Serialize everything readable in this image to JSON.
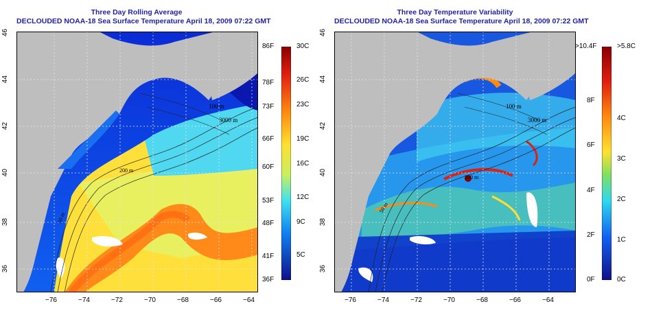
{
  "left_panel": {
    "title_line1": "Three Day Rolling Average",
    "title_line2": "DECLOUDED NOAA-18 Sea Surface Temperature April 18, 2009 07:22 GMT",
    "colorbar_f_labels": [
      "86F",
      "78F",
      "73F",
      "66F",
      "60F",
      "53F",
      "48F",
      "41F",
      "36F"
    ],
    "colorbar_c_labels": [
      "30C",
      "26C",
      "23C",
      "19C",
      "16C",
      "12C",
      "9C",
      "5C"
    ],
    "contour_labels": [
      "100 m",
      "3000 m",
      "50 m",
      "200 m"
    ]
  },
  "right_panel": {
    "title_line1": "Three Day Temperature Variability",
    "title_line2": "DECLOUDED NOAA-18 Sea Surface Temperature April 18, 2009 07:22 GMT",
    "colorbar_f_labels": [
      ">10.4F",
      "8F",
      "6F",
      "4F",
      "2F",
      "0F"
    ],
    "colorbar_c_labels": [
      ">5.8C",
      "4C",
      "3C",
      "2C",
      "1C",
      "0C"
    ],
    "contour_labels": [
      "100 m",
      "3000 m",
      "200 m",
      "50 m"
    ]
  },
  "x_ticks": [
    "−76",
    "−74",
    "−72",
    "−70",
    "−68",
    "−66",
    "−64"
  ],
  "y_ticks": [
    "46",
    "44",
    "42",
    "40",
    "38",
    "36"
  ],
  "colors": {
    "title": "#1f1fa8",
    "land": "#bebebe",
    "grid": "#e8e8e8"
  }
}
